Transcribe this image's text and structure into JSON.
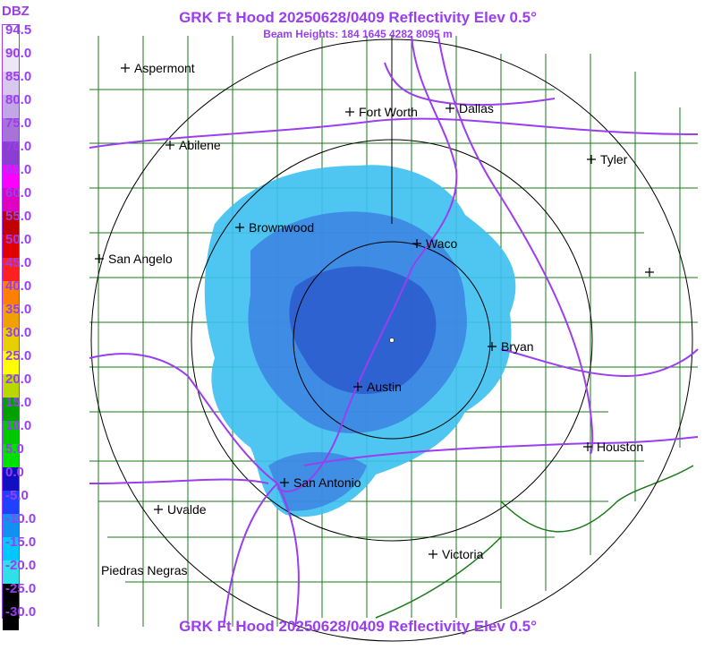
{
  "header": {
    "title": "GRK Ft Hood 20250628/0409 Reflectivity Elev 0.5°",
    "subtitle": "Beam Heights: 184 1645 4282 8095 m",
    "footer": "GRK Ft Hood 20250628/0409 Reflectivity Elev 0.5°"
  },
  "legend": {
    "unit": "DBZ",
    "labels": [
      "94.5",
      "90.0",
      "85.0",
      "80.0",
      "75.0",
      "70.0",
      "65.0",
      "60.0",
      "55.0",
      "50.0",
      "45.0",
      "40.0",
      "35.0",
      "30.0",
      "25.0",
      "20.0",
      "15.0",
      "10.0",
      "5.0",
      "0.0",
      "-5.0",
      "-10.0",
      "-15.0",
      "-20.0",
      "-25.0",
      "-30.0"
    ],
    "colors": [
      "#ffffff",
      "#ece6f5",
      "#d8c8ee",
      "#c3a6e6",
      "#a773d9",
      "#8a3fd0",
      "#ff00ff",
      "#e000c0",
      "#c00000",
      "#e00000",
      "#ff2020",
      "#ff7f00",
      "#f0a000",
      "#e8d000",
      "#ffff00",
      "#b8d800",
      "#00a000",
      "#00c800",
      "#00e000",
      "#1010c0",
      "#2040ff",
      "#1090f0",
      "#00c8ff",
      "#30e0e8",
      "#000000",
      "#000000"
    ]
  },
  "cities": [
    {
      "name": "Aspermont",
      "marker": "plus"
    },
    {
      "name": "Fort Worth",
      "marker": "plus"
    },
    {
      "name": "Dallas",
      "marker": "plus"
    },
    {
      "name": "Abilene",
      "marker": "plus"
    },
    {
      "name": "Tyler",
      "marker": "plus"
    },
    {
      "name": "Brownwood",
      "marker": "plus"
    },
    {
      "name": "Waco",
      "marker": "plus"
    },
    {
      "name": "San Angelo",
      "marker": "plus"
    },
    {
      "name": "Bryan",
      "marker": "plus"
    },
    {
      "name": "Austin",
      "marker": "plus"
    },
    {
      "name": "Houston",
      "marker": "plus"
    },
    {
      "name": "San Antonio",
      "marker": "plus"
    },
    {
      "name": "Uvalde",
      "marker": "plus"
    },
    {
      "name": "Victoria",
      "marker": "plus"
    },
    {
      "name": "Piedras Negras",
      "marker": "none"
    },
    {
      "name": "",
      "marker": "plus"
    }
  ],
  "colors": {
    "title": "#9a3ef0",
    "county_lines": "#1a7a1a",
    "highways": "#9a3ef0",
    "range_rings": "#000000",
    "echo_light": "#3cc0f0",
    "echo_mid": "#3a78e0",
    "echo_dark": "#2040c0"
  }
}
